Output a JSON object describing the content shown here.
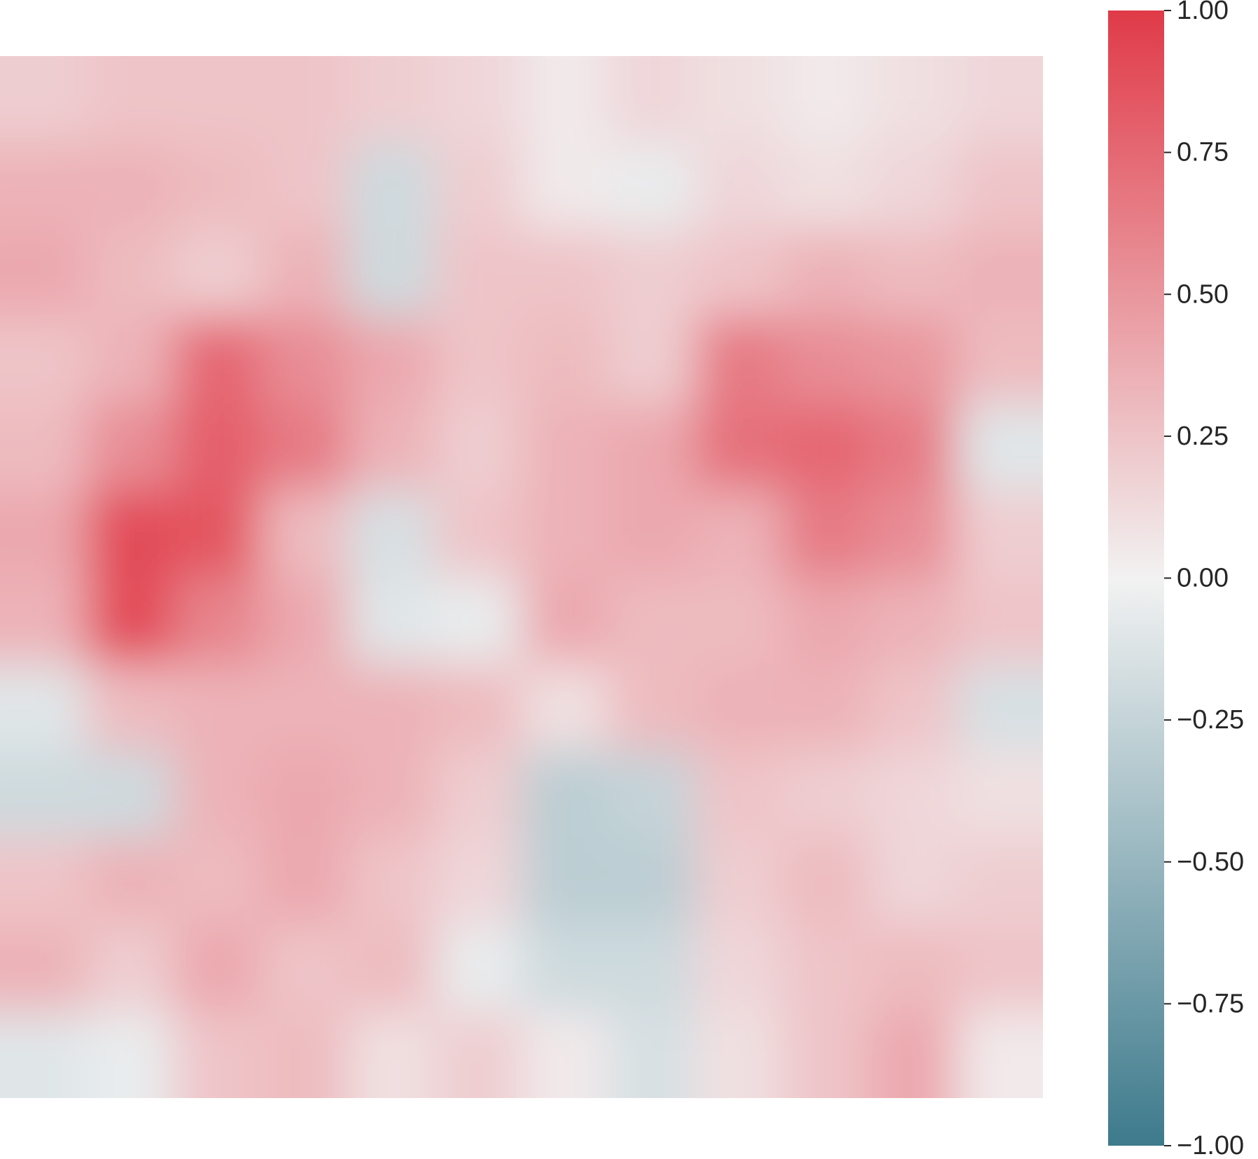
{
  "chart_data": {
    "type": "heatmap",
    "title": "",
    "xlabel": "",
    "ylabel": "",
    "grid": false,
    "colormap": {
      "name": "diverging",
      "low_color": "#3d7a8c",
      "mid_color": "#f2f2f2",
      "high_color": "#e03a48",
      "vmin": -1.0,
      "vmax": 1.0
    },
    "colorbar": {
      "position": "right",
      "ticks": [
        1.0,
        0.75,
        0.5,
        0.25,
        0.0,
        -0.25,
        -0.5,
        -0.75,
        -1.0
      ],
      "tick_labels": [
        "1.00",
        "0.75",
        "0.50",
        "0.25",
        "0.00",
        "−0.25",
        "−0.50",
        "−0.75",
        "−1.00"
      ]
    },
    "grid_shape": [
      12,
      12
    ],
    "values": [
      [
        0.2,
        0.25,
        0.25,
        0.25,
        0.2,
        0.15,
        0.05,
        0.15,
        0.1,
        0.05,
        0.1,
        0.15
      ],
      [
        0.35,
        0.35,
        0.3,
        0.25,
        -0.2,
        0.2,
        0.05,
        -0.05,
        0.15,
        0.1,
        0.15,
        0.25
      ],
      [
        0.4,
        0.3,
        0.2,
        0.35,
        -0.2,
        0.25,
        0.25,
        0.2,
        0.25,
        0.35,
        0.3,
        0.35
      ],
      [
        0.25,
        0.35,
        0.75,
        0.55,
        0.4,
        0.25,
        0.3,
        0.2,
        0.65,
        0.55,
        0.5,
        0.3
      ],
      [
        0.3,
        0.55,
        0.8,
        0.65,
        0.35,
        0.2,
        0.35,
        0.4,
        0.7,
        0.75,
        0.65,
        -0.1
      ],
      [
        0.4,
        0.9,
        0.85,
        0.3,
        -0.15,
        0.25,
        0.35,
        0.4,
        0.35,
        0.65,
        0.55,
        0.2
      ],
      [
        0.35,
        0.9,
        0.6,
        0.4,
        -0.1,
        -0.05,
        0.4,
        0.3,
        0.3,
        0.4,
        0.35,
        0.25
      ],
      [
        -0.1,
        0.3,
        0.35,
        0.35,
        0.35,
        0.3,
        0.1,
        0.3,
        0.35,
        0.35,
        0.25,
        -0.15
      ],
      [
        -0.2,
        -0.2,
        0.35,
        0.4,
        0.35,
        0.2,
        -0.3,
        -0.25,
        0.25,
        0.2,
        0.15,
        0.1
      ],
      [
        0.25,
        0.35,
        0.3,
        0.4,
        0.25,
        0.15,
        -0.3,
        -0.3,
        0.2,
        0.3,
        0.15,
        0.2
      ],
      [
        0.35,
        0.2,
        0.4,
        0.25,
        0.3,
        -0.05,
        -0.2,
        -0.2,
        0.15,
        0.25,
        0.3,
        0.25
      ],
      [
        -0.1,
        -0.05,
        0.25,
        0.3,
        0.1,
        0.2,
        0.05,
        -0.15,
        0.1,
        0.25,
        0.4,
        0.05
      ]
    ]
  }
}
